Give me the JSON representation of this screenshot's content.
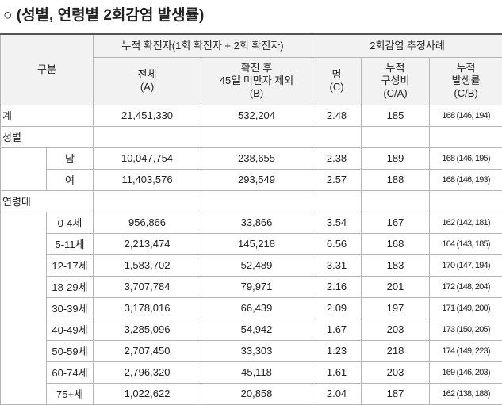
{
  "title": "○ (성별, 연령별 2회감염 발생률)",
  "header": {
    "group": "구분",
    "cumulative": "누적 확진자(1회 확진자 + 2회 확진자)",
    "reinfection": "2회감염 추정사례",
    "columns": [
      {
        "lines": [
          "전체",
          "(A)"
        ]
      },
      {
        "lines": [
          "확진 후",
          "45일 미만자 제외",
          "(B)"
        ]
      },
      {
        "lines": [
          "명",
          "(C)"
        ]
      },
      {
        "lines": [
          "누적",
          "구성비",
          "(C/A)"
        ]
      },
      {
        "lines": [
          "누적",
          "발생률",
          "(C/B)"
        ]
      }
    ]
  },
  "total": {
    "label": "계",
    "cells": [
      "21,451,330",
      "532,204",
      "2.48",
      "185",
      "168 (146, 194)"
    ]
  },
  "groups": [
    {
      "label": "성별",
      "rows": [
        {
          "label": "남",
          "cells": [
            "10,047,754",
            "238,655",
            "2.38",
            "189",
            "168 (146, 195)"
          ]
        },
        {
          "label": "여",
          "cells": [
            "11,403,576",
            "293,549",
            "2.57",
            "188",
            "168 (146, 193)"
          ]
        }
      ]
    },
    {
      "label": "연령대",
      "rows": [
        {
          "label": "0-4세",
          "cells": [
            "956,866",
            "33,866",
            "3.54",
            "167",
            "162 (142, 181)"
          ]
        },
        {
          "label": "5-11세",
          "cells": [
            "2,213,474",
            "145,218",
            "6.56",
            "168",
            "164 (143, 185)"
          ]
        },
        {
          "label": "12-17세",
          "cells": [
            "1,583,702",
            "52,489",
            "3.31",
            "183",
            "170 (147, 194)"
          ]
        },
        {
          "label": "18-29세",
          "cells": [
            "3,707,784",
            "79,971",
            "2.16",
            "201",
            "172 (148, 204)"
          ]
        },
        {
          "label": "30-39세",
          "cells": [
            "3,178,016",
            "66,439",
            "2.09",
            "197",
            "171 (149, 200)"
          ]
        },
        {
          "label": "40-49세",
          "cells": [
            "3,285,096",
            "54,942",
            "1.67",
            "203",
            "173 (150, 205)"
          ]
        },
        {
          "label": "50-59세",
          "cells": [
            "2,707,450",
            "33,303",
            "1.23",
            "218",
            "174 (149, 223)"
          ]
        },
        {
          "label": "60-74세",
          "cells": [
            "2,796,320",
            "45,118",
            "1.61",
            "203",
            "169 (146, 203)"
          ]
        },
        {
          "label": "75+세",
          "cells": [
            "1,022,622",
            "20,858",
            "2.04",
            "187",
            "162 (138, 188)"
          ]
        }
      ]
    }
  ]
}
